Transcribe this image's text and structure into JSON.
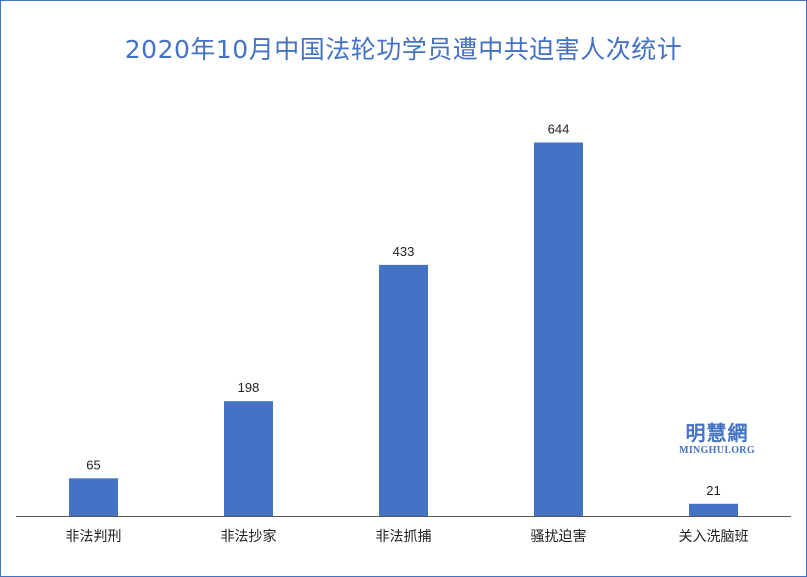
{
  "chart_data": {
    "type": "bar",
    "title": "2020年10月中国法轮功学员遭中共迫害人次统计",
    "categories": [
      "非法判刑",
      "非法抄家",
      "非法抓捕",
      "骚扰迫害",
      "关入洗脑班"
    ],
    "values": [
      65,
      198,
      433,
      644,
      21
    ],
    "xlabel": "",
    "ylabel": "",
    "ylim": [
      0,
      700
    ],
    "grid": false,
    "data_labels": true,
    "bar_color": "#4472c4"
  },
  "watermark": {
    "name_cn": "明慧網",
    "name_en": "MINGHUI.ORG"
  },
  "colors": {
    "accent": "#4472c4",
    "axis": "#595959",
    "text": "#1f1f1f"
  }
}
